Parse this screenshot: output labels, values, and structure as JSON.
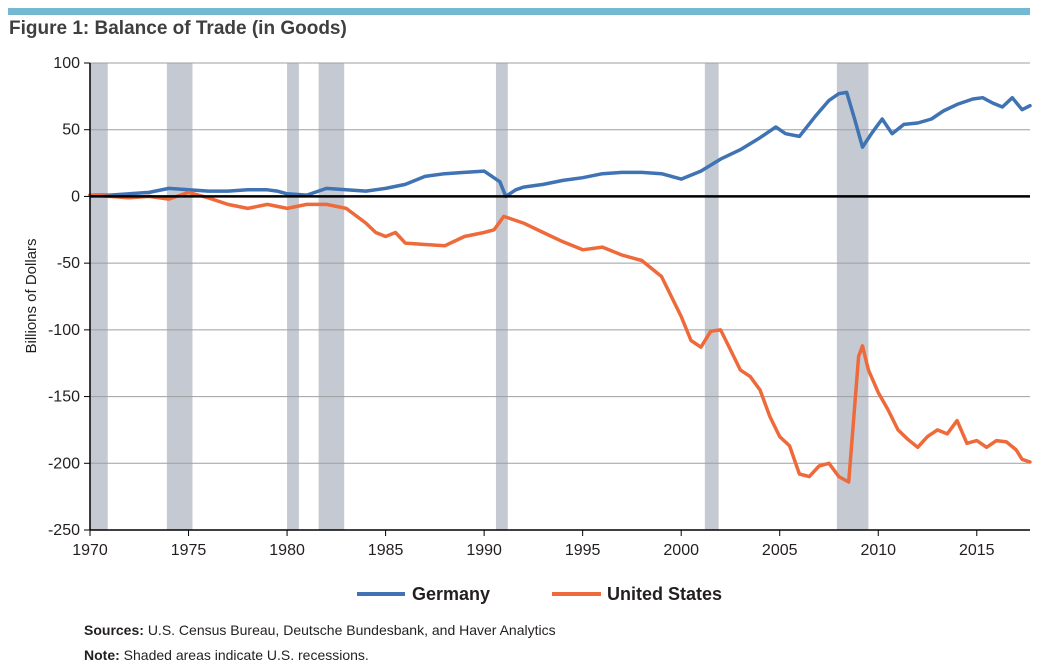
{
  "figure_title": "Figure 1: Balance of Trade (in Goods)",
  "sources_label": "Sources:",
  "sources_text": "U.S. Census Bureau, Deutsche Bundesbank, and Haver Analytics",
  "note_label": "Note:",
  "note_text": "Shaded areas indicate U.S. recessions.",
  "colors": {
    "germany": "#3f73b3",
    "united_states": "#ef6a3a",
    "recession": "#c5c9d2",
    "accent_bar": "#74b8d2"
  },
  "chart_data": {
    "type": "line",
    "title": "Balance of Trade (in Goods)",
    "ylabel": "Billions of Dollars",
    "xlabel": "",
    "xlim": [
      1970,
      2017.7
    ],
    "ylim": [
      -250,
      100
    ],
    "x_ticks": [
      1970,
      1975,
      1980,
      1985,
      1990,
      1995,
      2000,
      2005,
      2010,
      2015
    ],
    "y_ticks": [
      100,
      50,
      0,
      -50,
      -100,
      -150,
      -200,
      -250
    ],
    "grid": "horizontal",
    "legend_position": "bottom",
    "zero_line": true,
    "recessions": [
      [
        1969.9,
        1970.9
      ],
      [
        1973.9,
        1975.2
      ],
      [
        1980.0,
        1980.6
      ],
      [
        1981.6,
        1982.9
      ],
      [
        1990.6,
        1991.2
      ],
      [
        2001.2,
        2001.9
      ],
      [
        2007.9,
        2009.5
      ]
    ],
    "series": [
      {
        "name": "Germany",
        "color": "#3f73b3",
        "points": [
          [
            1970,
            1
          ],
          [
            1971,
            1
          ],
          [
            1972,
            2
          ],
          [
            1973,
            3
          ],
          [
            1974,
            6
          ],
          [
            1975,
            5
          ],
          [
            1976,
            4
          ],
          [
            1977,
            4
          ],
          [
            1978,
            5
          ],
          [
            1979,
            5
          ],
          [
            1979.5,
            4
          ],
          [
            1980,
            2
          ],
          [
            1981,
            1
          ],
          [
            1982,
            6
          ],
          [
            1983,
            5
          ],
          [
            1984,
            4
          ],
          [
            1985,
            6
          ],
          [
            1986,
            9
          ],
          [
            1987,
            15
          ],
          [
            1988,
            17
          ],
          [
            1989,
            18
          ],
          [
            1990,
            19
          ],
          [
            1990.8,
            11
          ],
          [
            1991.1,
            0
          ],
          [
            1991.6,
            5
          ],
          [
            1992,
            7
          ],
          [
            1993,
            9
          ],
          [
            1994,
            12
          ],
          [
            1995,
            14
          ],
          [
            1996,
            17
          ],
          [
            1997,
            18
          ],
          [
            1998,
            18
          ],
          [
            1999,
            17
          ],
          [
            2000,
            13
          ],
          [
            2001,
            19
          ],
          [
            2002,
            28
          ],
          [
            2003,
            35
          ],
          [
            2004,
            44
          ],
          [
            2004.8,
            52
          ],
          [
            2005.3,
            47
          ],
          [
            2006,
            45
          ],
          [
            2006.8,
            60
          ],
          [
            2007.5,
            72
          ],
          [
            2008,
            77
          ],
          [
            2008.4,
            78
          ],
          [
            2008.8,
            58
          ],
          [
            2009.2,
            37
          ],
          [
            2009.7,
            48
          ],
          [
            2010.2,
            58
          ],
          [
            2010.7,
            47
          ],
          [
            2011.3,
            54
          ],
          [
            2012,
            55
          ],
          [
            2012.7,
            58
          ],
          [
            2013.3,
            64
          ],
          [
            2014,
            69
          ],
          [
            2014.8,
            73
          ],
          [
            2015.3,
            74
          ],
          [
            2015.8,
            70
          ],
          [
            2016.3,
            67
          ],
          [
            2016.8,
            74
          ],
          [
            2017.3,
            65
          ],
          [
            2017.7,
            68
          ]
        ]
      },
      {
        "name": "United States",
        "color": "#ef6a3a",
        "points": [
          [
            1970,
            1
          ],
          [
            1971,
            0
          ],
          [
            1972,
            -1
          ],
          [
            1973,
            0
          ],
          [
            1974,
            -2
          ],
          [
            1975,
            3
          ],
          [
            1976,
            -1
          ],
          [
            1977,
            -6
          ],
          [
            1978,
            -9
          ],
          [
            1979,
            -6
          ],
          [
            1980,
            -9
          ],
          [
            1981,
            -6
          ],
          [
            1982,
            -6
          ],
          [
            1983,
            -9
          ],
          [
            1984,
            -20
          ],
          [
            1984.5,
            -27
          ],
          [
            1985,
            -30
          ],
          [
            1985.5,
            -27
          ],
          [
            1986,
            -35
          ],
          [
            1987,
            -36
          ],
          [
            1988,
            -37
          ],
          [
            1989,
            -30
          ],
          [
            1990,
            -27
          ],
          [
            1990.5,
            -25
          ],
          [
            1991,
            -15
          ],
          [
            1992,
            -20
          ],
          [
            1993,
            -27
          ],
          [
            1994,
            -34
          ],
          [
            1995,
            -40
          ],
          [
            1996,
            -38
          ],
          [
            1997,
            -44
          ],
          [
            1998,
            -48
          ],
          [
            1999,
            -60
          ],
          [
            2000,
            -90
          ],
          [
            2000.5,
            -108
          ],
          [
            2001,
            -113
          ],
          [
            2001.5,
            -101
          ],
          [
            2002,
            -100
          ],
          [
            2002.5,
            -115
          ],
          [
            2003,
            -130
          ],
          [
            2003.5,
            -135
          ],
          [
            2004,
            -145
          ],
          [
            2004.5,
            -165
          ],
          [
            2005,
            -180
          ],
          [
            2005.5,
            -187
          ],
          [
            2006,
            -208
          ],
          [
            2006.5,
            -210
          ],
          [
            2007,
            -202
          ],
          [
            2007.5,
            -200
          ],
          [
            2008,
            -210
          ],
          [
            2008.5,
            -214
          ],
          [
            2009,
            -120
          ],
          [
            2009.2,
            -112
          ],
          [
            2009.5,
            -130
          ],
          [
            2010,
            -147
          ],
          [
            2010.5,
            -160
          ],
          [
            2011,
            -175
          ],
          [
            2011.5,
            -182
          ],
          [
            2012,
            -188
          ],
          [
            2012.5,
            -180
          ],
          [
            2013,
            -175
          ],
          [
            2013.5,
            -178
          ],
          [
            2014,
            -168
          ],
          [
            2014.5,
            -185
          ],
          [
            2015,
            -183
          ],
          [
            2015.5,
            -188
          ],
          [
            2016,
            -183
          ],
          [
            2016.5,
            -184
          ],
          [
            2017,
            -190
          ],
          [
            2017.3,
            -197
          ],
          [
            2017.7,
            -199
          ]
        ]
      }
    ]
  }
}
